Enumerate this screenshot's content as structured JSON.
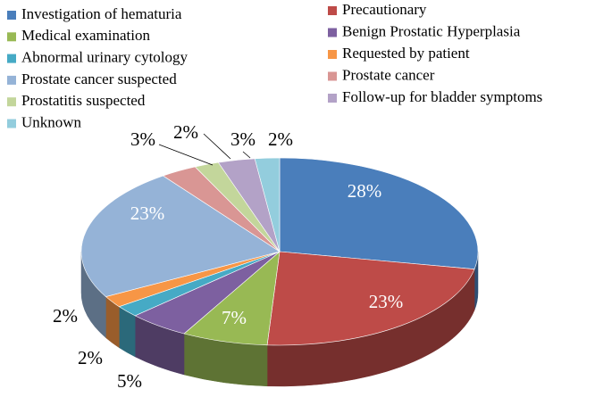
{
  "chart_data": {
    "type": "pie3d",
    "categories": [
      "Investigation of hematuria",
      "Precautionary",
      "Medical examination",
      "Benign Prostatic Hyperplasia",
      "Abnormal urinary cytology",
      "Requested by patient",
      "Prostate cancer suspected",
      "Prostate cancer",
      "Prostatitis suspected",
      "Follow-up for bladder symptoms",
      "Unknown"
    ],
    "values": [
      28,
      23,
      7,
      5,
      2,
      2,
      23,
      3,
      2,
      3,
      2
    ],
    "value_labels": [
      "28%",
      "23%",
      "7%",
      "5%",
      "2%",
      "2%",
      "23%",
      "3%",
      "2%",
      "3%",
      "2%"
    ],
    "colors": [
      "#4a7ebb",
      "#be4b48",
      "#98b954",
      "#7d60a0",
      "#46aac5",
      "#f79646",
      "#95b3d7",
      "#d99694",
      "#c3d69b",
      "#b3a2c7",
      "#93cddd"
    ],
    "legend": "top"
  }
}
